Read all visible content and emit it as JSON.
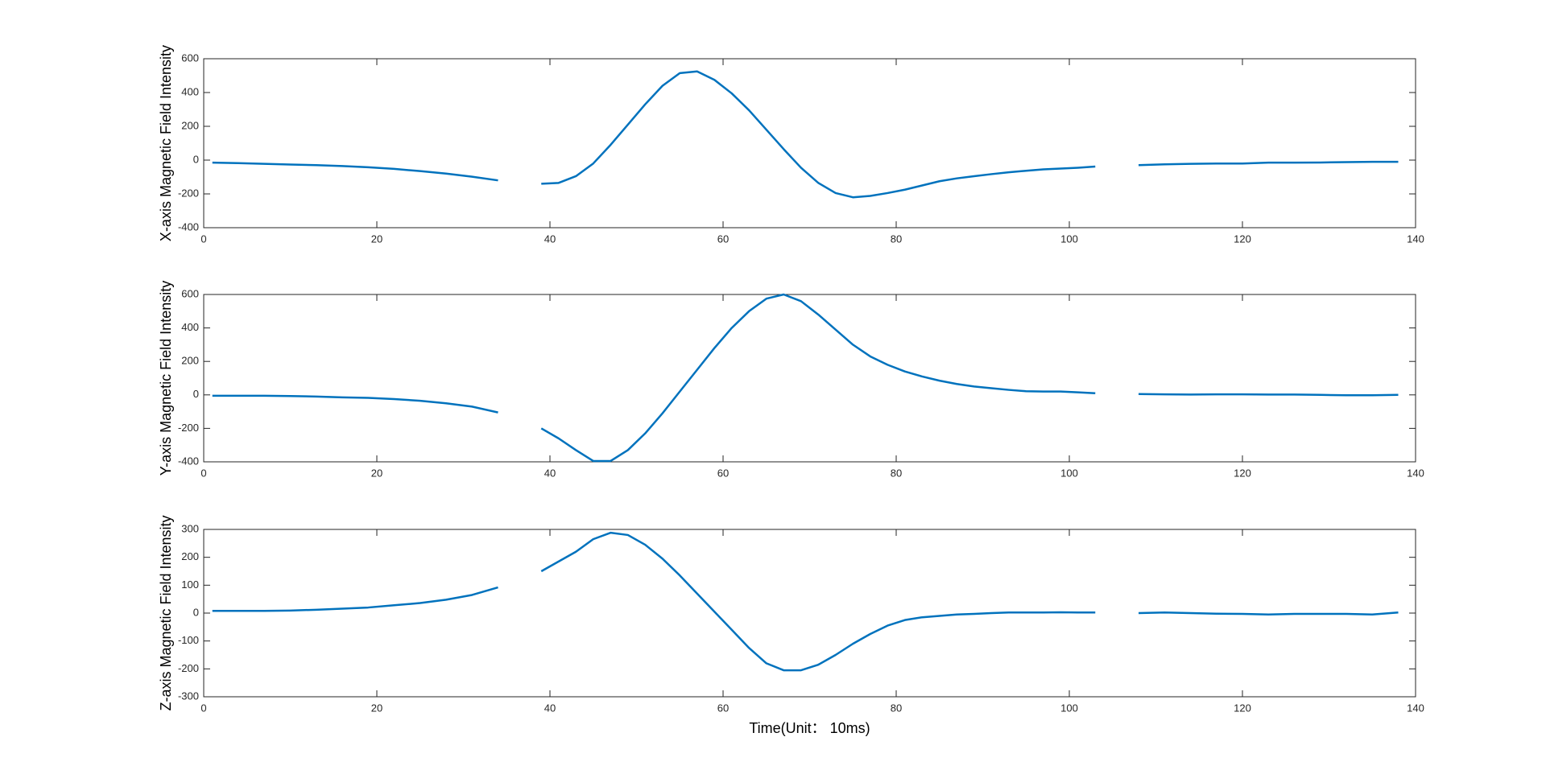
{
  "chart_data": [
    {
      "type": "line",
      "ylabel": "X-axis Magnetic Field Intensity",
      "x": [
        1,
        4,
        7,
        10,
        13,
        16,
        19,
        22,
        25,
        28,
        31,
        34,
        36,
        39,
        41,
        43,
        45,
        47,
        49,
        51,
        53,
        55,
        57,
        59,
        61,
        63,
        65,
        67,
        69,
        71,
        73,
        75,
        77,
        79,
        81,
        83,
        85,
        87,
        89,
        91,
        93,
        95,
        97,
        99,
        101,
        103,
        105,
        108,
        111,
        114,
        117,
        120,
        123,
        126,
        129,
        132,
        135,
        138
      ],
      "series": [
        {
          "color": "#0072bd",
          "values": [
            -15,
            -18,
            -22,
            -26,
            -30,
            -35,
            -42,
            -52,
            -65,
            -80,
            -98,
            -120,
            null,
            -140,
            -135,
            -95,
            -20,
            90,
            210,
            330,
            440,
            515,
            525,
            475,
            395,
            295,
            180,
            65,
            -45,
            -135,
            -195,
            -220,
            -212,
            -195,
            -175,
            -150,
            -125,
            -108,
            -95,
            -83,
            -72,
            -63,
            -55,
            -50,
            -45,
            -38,
            null,
            -30,
            -25,
            -22,
            -20,
            -20,
            -15,
            -15,
            -14,
            -12,
            -10,
            -10
          ]
        }
      ],
      "xlim": [
        0,
        140
      ],
      "xticks": [
        0,
        20,
        40,
        60,
        80,
        100,
        120,
        140
      ],
      "ylim": [
        -400,
        600
      ],
      "yticks": [
        -400,
        -200,
        0,
        200,
        400,
        600
      ]
    },
    {
      "type": "line",
      "ylabel": "Y-axis Magnetic Field Intensity",
      "x": [
        1,
        4,
        7,
        10,
        13,
        16,
        19,
        22,
        25,
        28,
        31,
        34,
        36,
        39,
        41,
        43,
        45,
        47,
        49,
        51,
        53,
        55,
        57,
        59,
        61,
        63,
        65,
        67,
        69,
        71,
        73,
        75,
        77,
        79,
        81,
        83,
        85,
        87,
        89,
        91,
        93,
        95,
        97,
        99,
        101,
        103,
        105,
        108,
        111,
        114,
        117,
        120,
        123,
        126,
        129,
        132,
        135,
        138
      ],
      "series": [
        {
          "color": "#0072bd",
          "values": [
            -5,
            -5,
            -5,
            -7,
            -10,
            -15,
            -18,
            -25,
            -35,
            -50,
            -70,
            -105,
            null,
            -200,
            -260,
            -330,
            -395,
            -395,
            -330,
            -230,
            -110,
            20,
            150,
            280,
            400,
            500,
            575,
            600,
            560,
            480,
            390,
            300,
            230,
            180,
            140,
            110,
            85,
            65,
            50,
            40,
            30,
            22,
            20,
            20,
            15,
            10,
            null,
            5,
            3,
            2,
            3,
            3,
            2,
            2,
            0,
            -2,
            -2,
            0
          ]
        }
      ],
      "xlim": [
        0,
        140
      ],
      "xticks": [
        0,
        20,
        40,
        60,
        80,
        100,
        120,
        140
      ],
      "ylim": [
        -400,
        600
      ],
      "yticks": [
        -400,
        -200,
        0,
        200,
        400,
        600
      ]
    },
    {
      "type": "line",
      "ylabel": "Z-axis Magnetic Field Intensity",
      "xlabel": "Time(Unit： 10ms)",
      "x": [
        1,
        4,
        7,
        10,
        13,
        16,
        19,
        22,
        25,
        28,
        31,
        34,
        36,
        39,
        41,
        43,
        45,
        47,
        49,
        51,
        53,
        55,
        57,
        59,
        61,
        63,
        65,
        67,
        69,
        71,
        73,
        75,
        77,
        79,
        81,
        83,
        85,
        87,
        89,
        91,
        93,
        95,
        97,
        99,
        101,
        103,
        105,
        108,
        111,
        114,
        117,
        120,
        123,
        126,
        129,
        132,
        135,
        138
      ],
      "series": [
        {
          "color": "#0072bd",
          "values": [
            8,
            8,
            8,
            9,
            12,
            16,
            20,
            28,
            36,
            48,
            65,
            92,
            null,
            150,
            185,
            220,
            265,
            288,
            280,
            245,
            195,
            135,
            70,
            5,
            -60,
            -125,
            -180,
            -205,
            -205,
            -185,
            -150,
            -110,
            -75,
            -45,
            -25,
            -15,
            -10,
            -5,
            -3,
            0,
            2,
            2,
            2,
            3,
            2,
            2,
            null,
            0,
            2,
            0,
            -2,
            -3,
            -5,
            -3,
            -3,
            -3,
            -5,
            2
          ]
        }
      ],
      "xlim": [
        0,
        140
      ],
      "xticks": [
        0,
        20,
        40,
        60,
        80,
        100,
        120,
        140
      ],
      "ylim": [
        -300,
        300
      ],
      "yticks": [
        -300,
        -200,
        -100,
        0,
        100,
        200,
        300
      ]
    }
  ]
}
